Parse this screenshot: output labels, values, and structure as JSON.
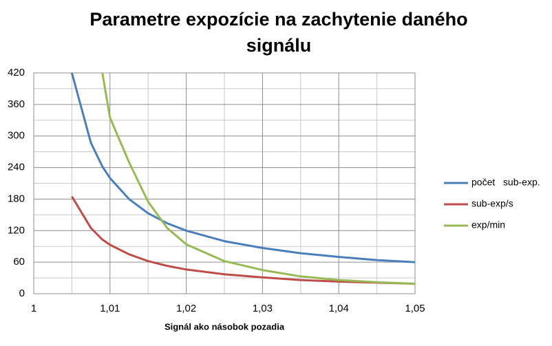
{
  "chart_data": {
    "type": "line",
    "title_lines": [
      "Parametre expozície na zachytenie daného",
      "signálu"
    ],
    "x_label": "Signál ako násobok pozadia",
    "x": [
      1.005,
      1.0075,
      1.009,
      1.01,
      1.0125,
      1.015,
      1.0175,
      1.02,
      1.025,
      1.03,
      1.035,
      1.04,
      1.045,
      1.05
    ],
    "series": [
      {
        "name": "počet   sub-exp.",
        "color": "#4a7ebb",
        "values": [
          420,
          287,
          242,
          220,
          180,
          153,
          134,
          120,
          100,
          87,
          77,
          70,
          64,
          60
        ]
      },
      {
        "name": "sub-exp/s",
        "color": "#be4b48",
        "values": [
          185,
          125,
          103,
          93,
          75,
          62,
          53,
          46,
          37,
          31,
          26,
          23,
          21,
          19
        ]
      },
      {
        "name": "exp/min",
        "color": "#98b954",
        "values": [
          null,
          null,
          420,
          335,
          250,
          175,
          125,
          94,
          62,
          45,
          33,
          26,
          22,
          19
        ]
      }
    ],
    "xlim": [
      1,
      1.05
    ],
    "xticks": [
      1,
      {
        "value": 1.01,
        "label": "1,01"
      },
      {
        "value": 1.02,
        "label": "1,02"
      },
      {
        "value": 1.03,
        "label": "1,03"
      },
      {
        "value": 1.04,
        "label": "1,04"
      },
      {
        "value": 1.05,
        "label": "1,05"
      }
    ],
    "ylim": [
      0,
      420
    ],
    "yticks": [
      0,
      60,
      120,
      180,
      240,
      300,
      360,
      420
    ],
    "grid": true,
    "minor_grid": true,
    "legend": "right"
  }
}
